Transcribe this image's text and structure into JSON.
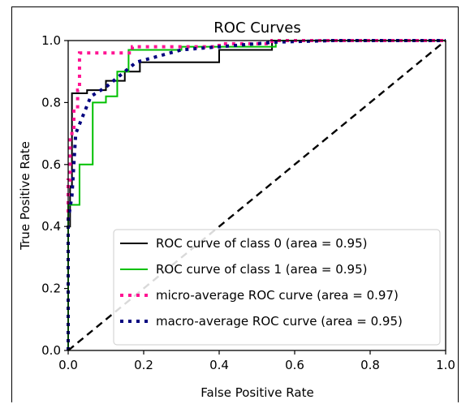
{
  "chart_data": {
    "type": "line",
    "title": "ROC Curves",
    "xlabel": "False Positive Rate",
    "ylabel": "True Positive Rate",
    "xlim": [
      0.0,
      1.0
    ],
    "ylim": [
      0.0,
      1.0
    ],
    "xticks": [
      "0.0",
      "0.2",
      "0.4",
      "0.6",
      "0.8",
      "1.0"
    ],
    "yticks": [
      "0.0",
      "0.2",
      "0.4",
      "0.6",
      "0.8",
      "1.0"
    ],
    "grid": false,
    "legend_position": "lower-right",
    "series": [
      {
        "name": "ROC curve of class 0 (area = 0.95)",
        "color": "#000000",
        "style": "solid",
        "points": [
          [
            0,
            0
          ],
          [
            0,
            0.4
          ],
          [
            0.005,
            0.4
          ],
          [
            0.005,
            0.53
          ],
          [
            0.01,
            0.53
          ],
          [
            0.01,
            0.83
          ],
          [
            0.05,
            0.83
          ],
          [
            0.05,
            0.84
          ],
          [
            0.1,
            0.84
          ],
          [
            0.1,
            0.87
          ],
          [
            0.15,
            0.87
          ],
          [
            0.15,
            0.9
          ],
          [
            0.19,
            0.9
          ],
          [
            0.19,
            0.93
          ],
          [
            0.4,
            0.93
          ],
          [
            0.4,
            0.97
          ],
          [
            0.54,
            0.97
          ],
          [
            0.54,
            1.0
          ],
          [
            1.0,
            1.0
          ]
        ]
      },
      {
        "name": "ROC curve of class 1 (area = 0.95)",
        "color": "#00c000",
        "style": "solid",
        "points": [
          [
            0,
            0
          ],
          [
            0,
            0.47
          ],
          [
            0.03,
            0.47
          ],
          [
            0.03,
            0.6
          ],
          [
            0.065,
            0.6
          ],
          [
            0.065,
            0.8
          ],
          [
            0.1,
            0.8
          ],
          [
            0.1,
            0.82
          ],
          [
            0.13,
            0.82
          ],
          [
            0.13,
            0.9
          ],
          [
            0.16,
            0.9
          ],
          [
            0.16,
            0.97
          ],
          [
            0.3,
            0.97
          ],
          [
            0.3,
            0.98
          ],
          [
            0.55,
            0.98
          ],
          [
            0.55,
            1.0
          ],
          [
            1.0,
            1.0
          ]
        ]
      },
      {
        "name": "micro-average ROC curve (area = 0.97)",
        "color": "#ff1493",
        "style": "dotted",
        "points": [
          [
            0,
            0
          ],
          [
            0,
            0.55
          ],
          [
            0.005,
            0.55
          ],
          [
            0.005,
            0.7
          ],
          [
            0.015,
            0.7
          ],
          [
            0.015,
            0.78
          ],
          [
            0.025,
            0.78
          ],
          [
            0.025,
            0.84
          ],
          [
            0.03,
            0.84
          ],
          [
            0.03,
            0.96
          ],
          [
            0.17,
            0.96
          ],
          [
            0.17,
            0.98
          ],
          [
            0.4,
            0.98
          ],
          [
            0.4,
            0.99
          ],
          [
            0.54,
            0.99
          ],
          [
            0.54,
            1.0
          ],
          [
            1.0,
            1.0
          ]
        ]
      },
      {
        "name": "macro-average ROC curve (area = 0.95)",
        "color": "#00007f",
        "style": "dotted",
        "points": [
          [
            0,
            0
          ],
          [
            0,
            0.42
          ],
          [
            0.01,
            0.5
          ],
          [
            0.02,
            0.7
          ],
          [
            0.04,
            0.76
          ],
          [
            0.06,
            0.82
          ],
          [
            0.1,
            0.85
          ],
          [
            0.14,
            0.89
          ],
          [
            0.18,
            0.93
          ],
          [
            0.3,
            0.97
          ],
          [
            0.55,
            0.995
          ],
          [
            0.7,
            1.0
          ],
          [
            1.0,
            1.0
          ]
        ]
      },
      {
        "name": "",
        "color": "#000000",
        "style": "dashed",
        "points": [
          [
            0,
            0
          ],
          [
            1,
            1
          ]
        ]
      }
    ]
  }
}
